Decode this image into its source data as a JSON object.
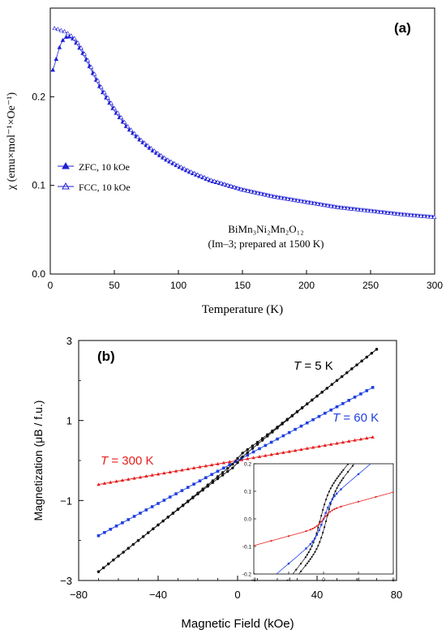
{
  "chart_data": [
    {
      "type": "line",
      "panel_label": "(a)",
      "xlabel": "Temperature (K)",
      "ylabel": "χ (emu×mol⁻¹×Oe⁻¹)",
      "xlim": [
        0,
        300
      ],
      "ylim": [
        0,
        0.3
      ],
      "xticks": [
        "0",
        "50",
        "100",
        "150",
        "200",
        "250",
        "300"
      ],
      "yticks": [
        "0.0",
        "0.1",
        "0.2"
      ],
      "grid": false,
      "legend_position": "center-left",
      "annotation_line1": "BiMn₃Ni₂Mn₂O₁₂",
      "annotation_line2": "(Im–3; prepared at 1500 K)",
      "colors": {
        "series": "#1f1fd6"
      },
      "x": [
        2,
        4,
        6,
        8,
        10,
        12,
        14,
        16,
        18,
        20,
        25,
        30,
        35,
        40,
        50,
        60,
        70,
        80,
        90,
        100,
        110,
        125,
        150,
        175,
        200,
        225,
        250,
        275,
        300
      ],
      "series": [
        {
          "name": "ZFC, 10 kOe",
          "marker": "filled-triangle",
          "values": [
            0.23,
            0.239,
            0.25,
            0.259,
            0.264,
            0.267,
            0.268,
            0.267,
            0.265,
            0.261,
            0.25,
            0.236,
            0.221,
            0.207,
            0.184,
            0.165,
            0.151,
            0.139,
            0.129,
            0.121,
            0.114,
            0.105,
            0.095,
            0.087,
            0.081,
            0.075,
            0.071,
            0.067,
            0.064
          ]
        },
        {
          "name": "FCC, 10 kOe",
          "marker": "open-triangle",
          "values": [
            0.277,
            0.277,
            0.276,
            0.275,
            0.274,
            0.273,
            0.271,
            0.269,
            0.267,
            0.264,
            0.253,
            0.239,
            0.224,
            0.21,
            0.187,
            0.167,
            0.152,
            0.14,
            0.13,
            0.122,
            0.115,
            0.106,
            0.095,
            0.087,
            0.081,
            0.075,
            0.071,
            0.067,
            0.064
          ]
        }
      ]
    },
    {
      "type": "line",
      "panel_label": "(b)",
      "xlabel": "Magnetic Field (kOe)",
      "ylabel": "Magnetization  (μB / f.u.)",
      "xlim": [
        -80,
        80
      ],
      "ylim": [
        -3,
        3
      ],
      "xticks": [
        "−80",
        "−40",
        "0",
        "40",
        "80"
      ],
      "yticks": [
        "−3",
        "−1",
        "1",
        "3"
      ],
      "grid": false,
      "series": [
        {
          "name": "T = 5 K",
          "color": "#111111",
          "slope": 0.0385,
          "x": [
            -70,
            -50,
            -30,
            -10,
            -2,
            0,
            2,
            10,
            30,
            50,
            70
          ],
          "values": [
            -2.78,
            -2.0,
            -1.22,
            -0.43,
            -0.12,
            0.0,
            0.12,
            0.43,
            1.22,
            2.0,
            2.78
          ]
        },
        {
          "name": "T = 60 K",
          "color": "#1f3fe0",
          "x": [
            -70,
            -35,
            0,
            35,
            70
          ],
          "values": [
            -1.88,
            -0.94,
            0.0,
            0.94,
            1.88
          ]
        },
        {
          "name": "T = 300 K",
          "color": "#e61e1e",
          "x": [
            -70,
            -35,
            0,
            35,
            70
          ],
          "values": [
            -0.6,
            -0.3,
            0.0,
            0.3,
            0.6
          ]
        }
      ],
      "label_5k_italic": "T",
      "label_5k_rest": " = 5 K",
      "label_60k_italic": "T",
      "label_60k_rest": " = 60 K",
      "label_300k_italic": "T",
      "label_300k_rest": " = 300 K",
      "inset": {
        "xlim": [
          -8,
          8
        ],
        "ylim": [
          -0.2,
          0.2
        ],
        "xticks": [
          "-8",
          "-4",
          "0",
          "4",
          "8"
        ],
        "yticks": [
          "-0.2",
          "-0.1",
          "0.0",
          "0.1",
          "0.2"
        ]
      }
    }
  ]
}
